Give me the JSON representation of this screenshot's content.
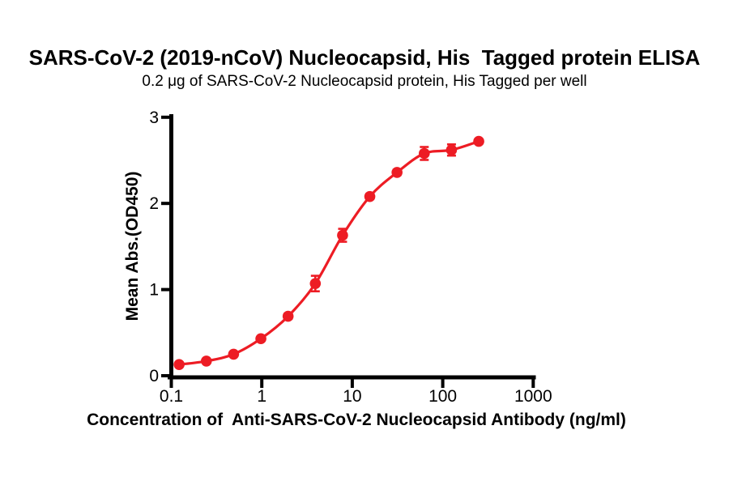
{
  "chart_data": {
    "type": "scatter",
    "curve_fit": "4PL sigmoidal dose-response",
    "title": "SARS-CoV-2 (2019-nCoV) Nucleocapsid, His  Tagged protein ELISA",
    "subtitle": "0.2 μg of SARS-CoV-2 Nucleocapsid protein, His Tagged per well",
    "xlabel": "Concentration of  Anti-SARS-CoV-2 Nucleocapsid Antibody (ng/ml)",
    "ylabel": "Mean Abs.(OD450)",
    "x_scale": "log10",
    "xlim": [
      0.1,
      1000
    ],
    "ylim": [
      0,
      3
    ],
    "x_ticks": [
      0.1,
      1,
      10,
      100,
      1000
    ],
    "x_tick_labels": [
      "0.1",
      "1",
      "10",
      "100",
      "1000"
    ],
    "y_ticks": [
      0,
      1,
      2,
      3
    ],
    "y_tick_labels": [
      "0",
      "1",
      "2",
      "3"
    ],
    "grid": false,
    "legend": "none",
    "series": [
      {
        "name": "Anti-SARS-CoV-2 Nucleocapsid Antibody",
        "marker": "filled-circle",
        "color": "#ed1c24",
        "x": [
          0.122,
          0.244,
          0.488,
          0.977,
          1.953,
          3.906,
          7.813,
          15.625,
          31.25,
          62.5,
          125,
          250
        ],
        "y": [
          0.13,
          0.17,
          0.25,
          0.43,
          0.69,
          1.07,
          1.63,
          2.08,
          2.36,
          2.58,
          2.62,
          2.72
        ],
        "y_err": [
          0.02,
          0.02,
          0.02,
          0.02,
          0.03,
          0.09,
          0.075,
          0.03,
          0.03,
          0.075,
          0.065,
          0.02
        ]
      }
    ]
  },
  "style": {
    "curve_color": "#ed1c24",
    "axis_color": "#000000",
    "text_color": "#000000",
    "background": "#ffffff"
  }
}
